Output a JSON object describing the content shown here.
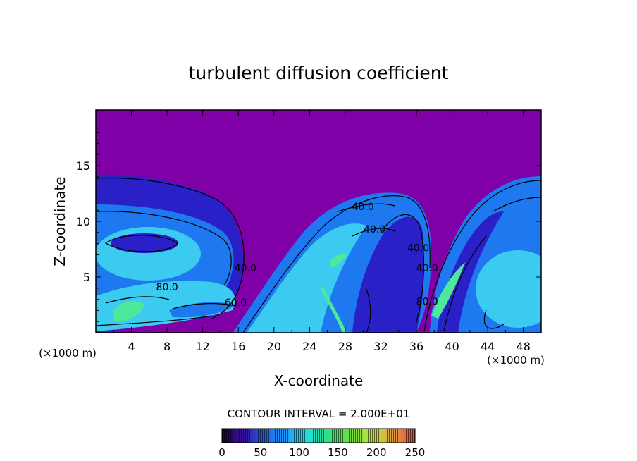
{
  "chart_data": {
    "type": "heatmap",
    "title": "turbulent diffusion coefficient",
    "xlabel": "X-coordinate",
    "ylabel": "Z-coordinate",
    "x_unit": "(×1000 m)",
    "y_unit": "(×1000 m)",
    "xlim": [
      0,
      50
    ],
    "ylim": [
      0,
      20
    ],
    "x_ticks": [
      4,
      8,
      12,
      16,
      20,
      24,
      28,
      32,
      36,
      40,
      44,
      48
    ],
    "y_ticks": [
      5,
      10,
      15
    ],
    "contour_interval_label": "CONTOUR INTERVAL = 2.000E+01",
    "contour_labels": [
      {
        "text": "40.0",
        "x": 30.0,
        "z": 11.0
      },
      {
        "text": "40.0",
        "x": 31.3,
        "z": 9.0
      },
      {
        "text": "40.0",
        "x": 36.2,
        "z": 7.3
      },
      {
        "text": "40.0",
        "x": 37.2,
        "z": 5.5
      },
      {
        "text": "40.0",
        "x": 16.8,
        "z": 5.5
      },
      {
        "text": "80.0",
        "x": 8.0,
        "z": 3.8
      },
      {
        "text": "60.0",
        "x": 15.7,
        "z": 2.4
      },
      {
        "text": "80.0",
        "x": 37.2,
        "z": 2.5
      }
    ],
    "colorbar": {
      "min": 0,
      "max": 250,
      "ticks": [
        0,
        50,
        100,
        150,
        200,
        250
      ],
      "colors": [
        "#1a0040",
        "#3a10a0",
        "#2060e0",
        "#1ea0ff",
        "#20e0e0",
        "#30e080",
        "#70e040",
        "#c0e040",
        "#e0a040",
        "#e04040"
      ]
    },
    "field_colors": {
      "background": "#8000a8",
      "low": "#2a20c8",
      "mid": "#1e78f0",
      "high": "#3ccbf0",
      "peak": "#4ee89a"
    }
  }
}
